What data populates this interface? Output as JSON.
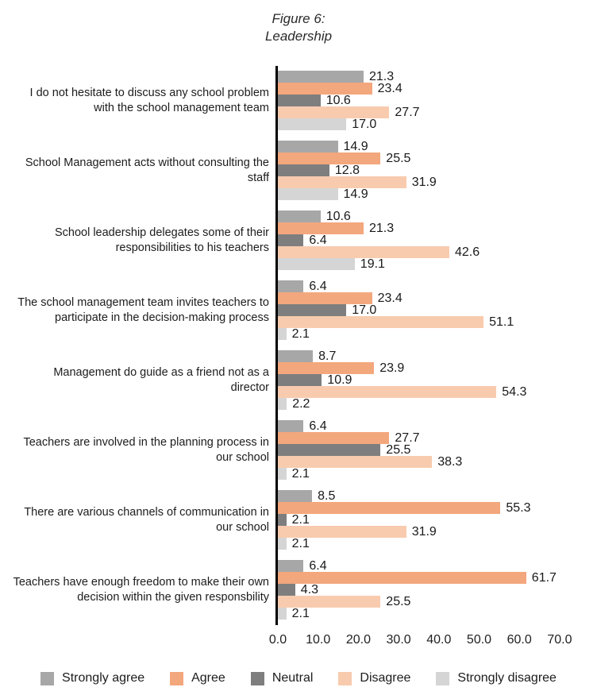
{
  "title": {
    "line1": "Figure 6:",
    "line2": "Leadership"
  },
  "chart_data": {
    "type": "bar",
    "orientation": "horizontal",
    "title": "Figure 6: Leadership",
    "xlabel": "",
    "ylabel": "",
    "xlim": [
      0,
      70
    ],
    "grid": false,
    "legend_position": "bottom",
    "value_label_format": "one_decimal",
    "x_axis": {
      "ticks": [
        "0.0",
        "10.0",
        "20.0",
        "30.0",
        "40.0",
        "50.0",
        "60.0",
        "70.0"
      ],
      "min": 0,
      "max": 70,
      "tick_interval": 10
    },
    "series": [
      {
        "name": "Strongly agree",
        "color": "#a7a7a7"
      },
      {
        "name": "Agree",
        "color": "#f3a77d"
      },
      {
        "name": "Neutral",
        "color": "#7e7e7e"
      },
      {
        "name": "Disagree",
        "color": "#f8cbae"
      },
      {
        "name": "Strongly disagree",
        "color": "#d5d5d5"
      }
    ],
    "categories": [
      {
        "label": "I do not hesitate to discuss any school problem with the school management team",
        "label_lines": [
          "I do not hesitate to discuss any school problem",
          "with the school management team"
        ],
        "values": [
          21.3,
          23.4,
          10.6,
          27.7,
          17.0
        ]
      },
      {
        "label": "School Management acts without consulting the staff",
        "label_lines": [
          "School Management acts without consulting the",
          "staff"
        ],
        "values": [
          14.9,
          25.5,
          12.8,
          31.9,
          14.9
        ]
      },
      {
        "label": "School leadership delegates some of their responsibilities to his teachers",
        "label_lines": [
          "School leadership delegates some of their",
          "responsibilities to his teachers"
        ],
        "values": [
          10.6,
          21.3,
          6.4,
          42.6,
          19.1
        ]
      },
      {
        "label": "The school management team invites teachers to participate in the decision-making process",
        "label_lines": [
          "The school management team invites teachers to",
          "participate in the decision-making process"
        ],
        "values": [
          6.4,
          23.4,
          17.0,
          51.1,
          2.1
        ]
      },
      {
        "label": "Management do guide as a friend not as a director",
        "label_lines": [
          "Management do guide as a friend not as a",
          "director"
        ],
        "values": [
          8.7,
          23.9,
          10.9,
          54.3,
          2.2
        ]
      },
      {
        "label": "Teachers are involved in the planning process in our school",
        "label_lines": [
          "Teachers are involved in the planning process in",
          "our school"
        ],
        "values": [
          6.4,
          27.7,
          25.5,
          38.3,
          2.1
        ]
      },
      {
        "label": "There are various channels of communication in our school",
        "label_lines": [
          "There are various channels of communication in",
          "our school"
        ],
        "values": [
          8.5,
          55.3,
          2.1,
          31.9,
          2.1
        ]
      },
      {
        "label": "Teachers have enough freedom to make their own decision within the given responsbility",
        "label_lines": [
          "Teachers have enough freedom to make their own",
          "decision within the given responsbility"
        ],
        "values": [
          6.4,
          61.7,
          4.3,
          25.5,
          2.1
        ]
      }
    ]
  }
}
